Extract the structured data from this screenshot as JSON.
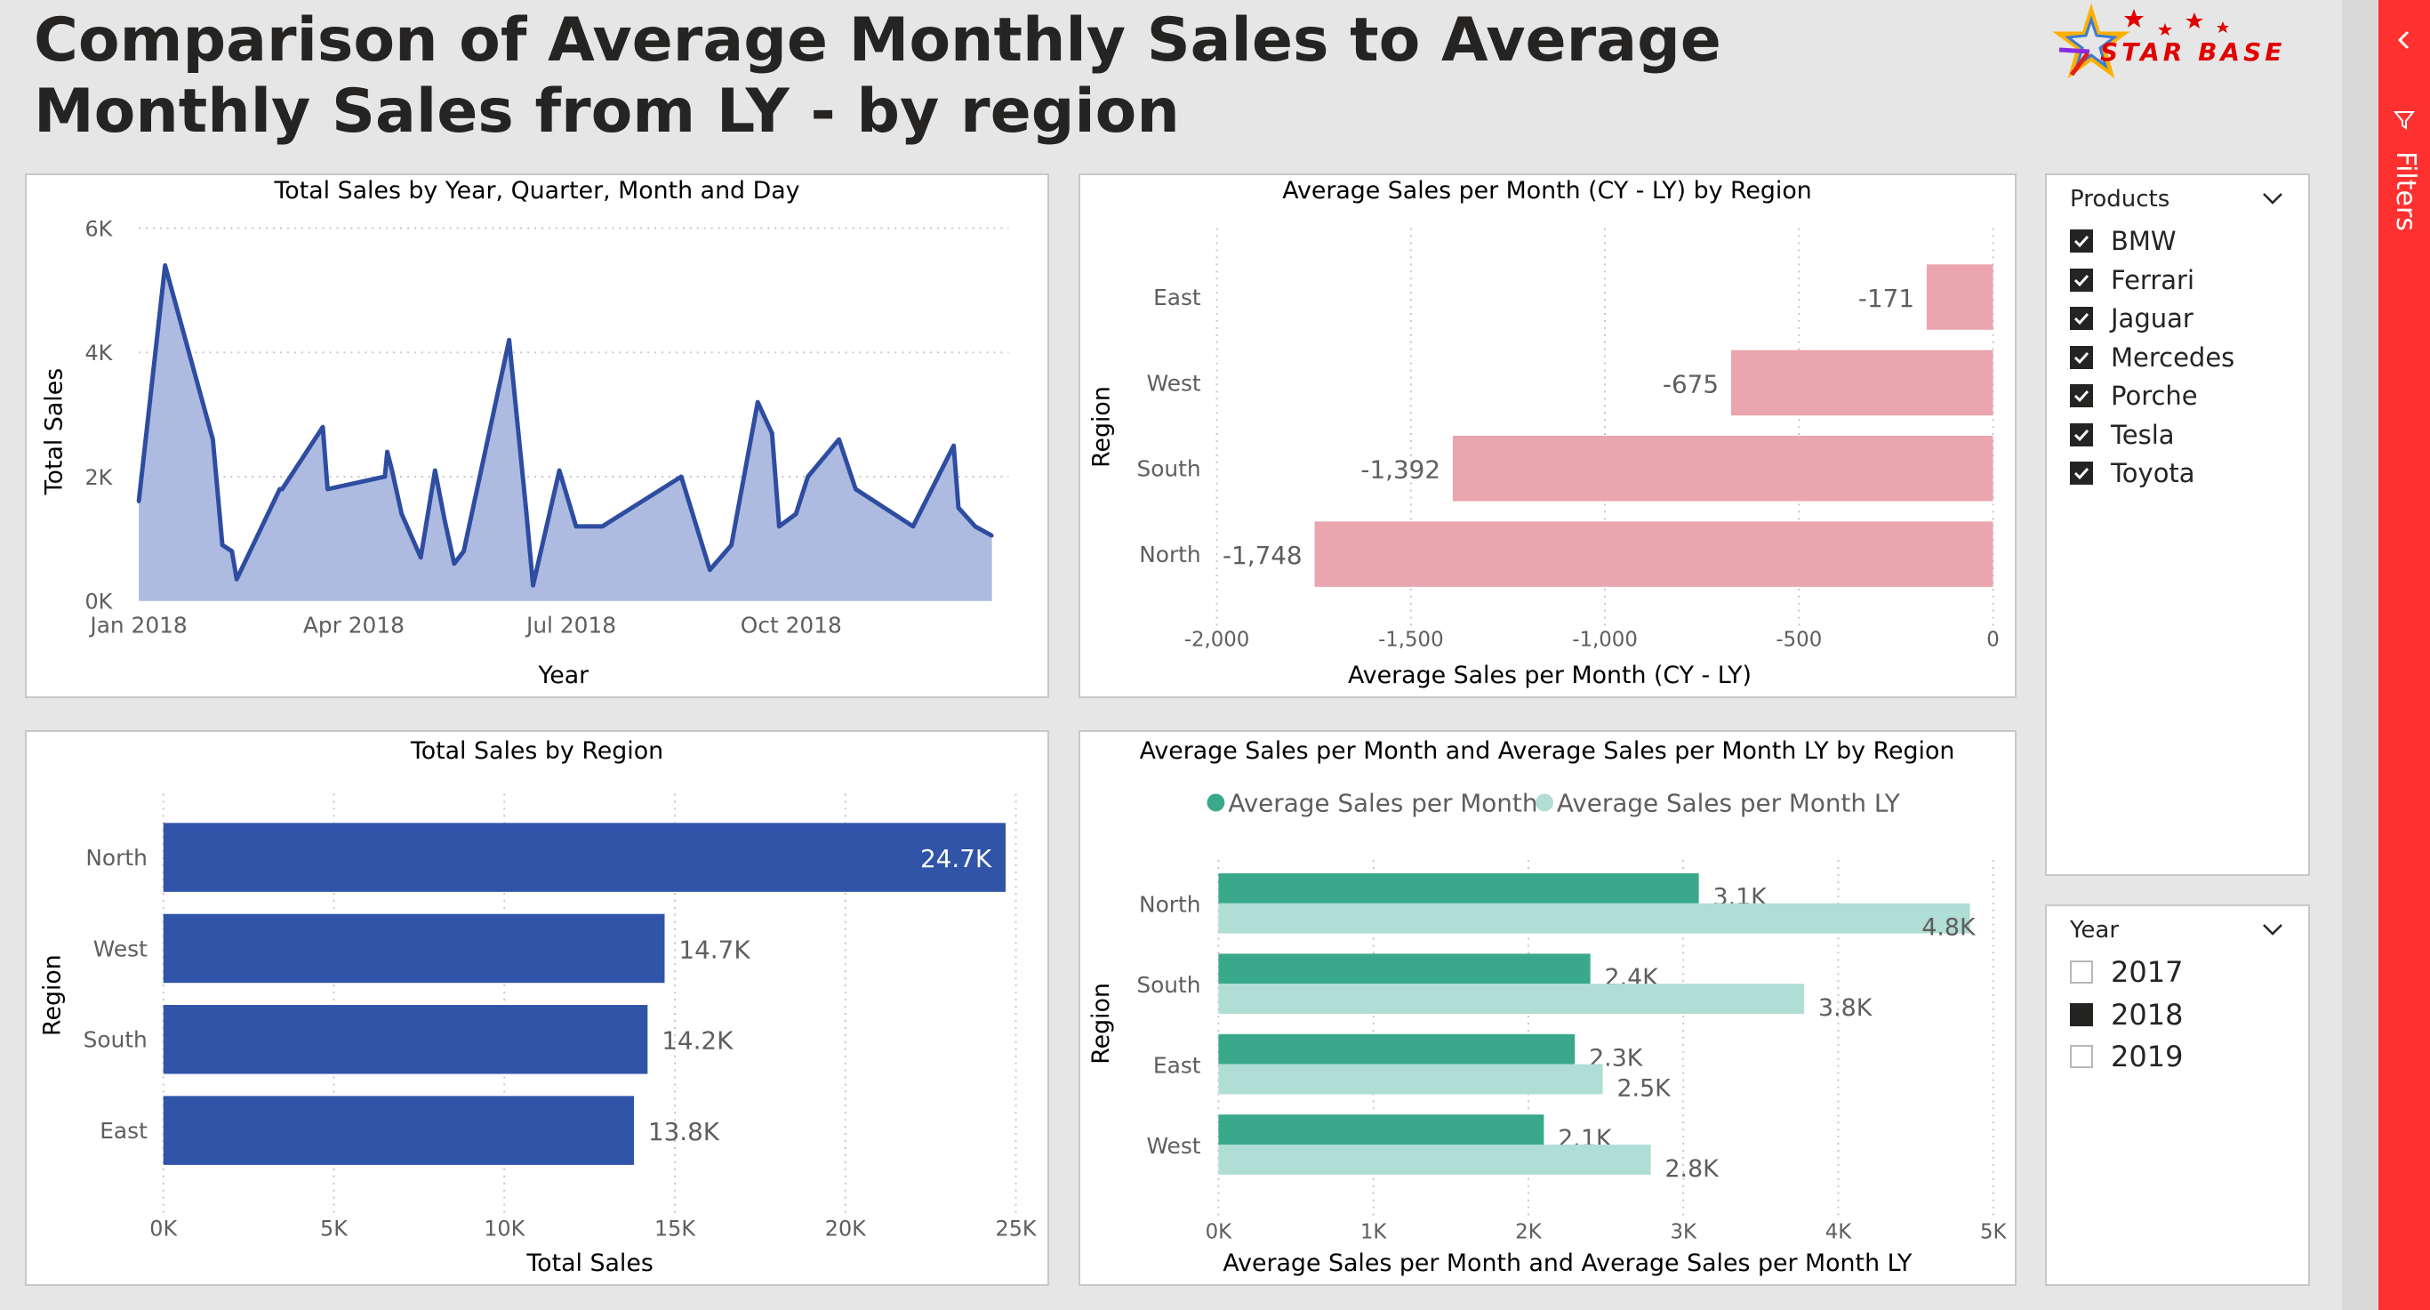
{
  "page": {
    "title_line1": "Comparison of Average Monthly Sales to Average",
    "title_line2": "Monthly Sales from LY - by region",
    "logo_text": "STAR BASE"
  },
  "colors": {
    "line": "#2e4da0",
    "area": "#aebbe0",
    "pink": "#eba5af",
    "blue_bar": "#3054a8",
    "teal": "#3aa88a",
    "teal_light": "#b0ddd4",
    "sidebar": "#ff3030"
  },
  "sidebar": {
    "filters_label": "Filters"
  },
  "slicers": {
    "products": {
      "header": "Products",
      "items": [
        {
          "label": "BMW",
          "checked": true
        },
        {
          "label": "Ferrari",
          "checked": true
        },
        {
          "label": "Jaguar",
          "checked": true
        },
        {
          "label": "Mercedes",
          "checked": true
        },
        {
          "label": "Porche",
          "checked": true
        },
        {
          "label": "Tesla",
          "checked": true
        },
        {
          "label": "Toyota",
          "checked": true
        }
      ]
    },
    "year": {
      "header": "Year",
      "items": [
        {
          "label": "2017",
          "checked": false
        },
        {
          "label": "2018",
          "checked": true
        },
        {
          "label": "2019",
          "checked": false
        }
      ]
    }
  },
  "chart_data": [
    {
      "type": "area",
      "title": "Total Sales by Year, Quarter, Month and Day",
      "xlabel": "Year",
      "ylabel": "Total Sales",
      "ylim": [
        0,
        6000
      ],
      "yticks": [
        0,
        2000,
        4000,
        6000
      ],
      "ytick_labels": [
        "0K",
        "2K",
        "4K",
        "6K"
      ],
      "xlim": [
        "2018-01-01",
        "2018-12-31"
      ],
      "xticks": [
        "2018-01-01",
        "2018-04-01",
        "2018-07-01",
        "2018-10-01"
      ],
      "xtick_labels": [
        "Jan 2018",
        "Apr 2018",
        "Jul 2018",
        "Oct 2018"
      ],
      "x": [
        "2018-01-01",
        "2018-01-12",
        "2018-02-01",
        "2018-02-05",
        "2018-02-09",
        "2018-02-11",
        "2018-03-01",
        "2018-03-02",
        "2018-03-19",
        "2018-03-21",
        "2018-04-14",
        "2018-04-15",
        "2018-04-17",
        "2018-04-21",
        "2018-04-29",
        "2018-05-05",
        "2018-05-09",
        "2018-05-13",
        "2018-05-17",
        "2018-06-05",
        "2018-06-12",
        "2018-06-15",
        "2018-06-26",
        "2018-07-03",
        "2018-07-14",
        "2018-08-16",
        "2018-08-28",
        "2018-09-06",
        "2018-09-17",
        "2018-09-23",
        "2018-09-26",
        "2018-10-03",
        "2018-10-08",
        "2018-10-21",
        "2018-10-28",
        "2018-11-21",
        "2018-12-08",
        "2018-12-10",
        "2018-12-17",
        "2018-12-24"
      ],
      "values": [
        1600,
        5400,
        2600,
        900,
        800,
        350,
        1800,
        1800,
        2800,
        1800,
        2000,
        2400,
        2100,
        1400,
        700,
        2100,
        1300,
        600,
        800,
        4200,
        1500,
        250,
        2100,
        1200,
        1200,
        2000,
        500,
        900,
        3200,
        2700,
        1200,
        1400,
        2000,
        2600,
        1800,
        1200,
        2500,
        1500,
        1200,
        1050
      ]
    },
    {
      "type": "bar",
      "orientation": "horizontal",
      "title": "Average Sales per Month (CY - LY) by Region",
      "xlabel": "Average Sales per Month (CY - LY)",
      "ylabel": "Region",
      "xlim": [
        -2000,
        0
      ],
      "xticks": [
        -2000,
        -1500,
        -1000,
        -500,
        0
      ],
      "xtick_labels": [
        "-2,000",
        "-1,500",
        "-1,000",
        "-500",
        "0"
      ],
      "categories": [
        "East",
        "West",
        "South",
        "North"
      ],
      "values": [
        -171,
        -675,
        -1392,
        -1748
      ],
      "data_labels": [
        "-171",
        "-675",
        "-1,392",
        "-1,748"
      ]
    },
    {
      "type": "bar",
      "orientation": "horizontal",
      "title": "Total Sales by Region",
      "xlabel": "Total Sales",
      "ylabel": "Region",
      "xlim": [
        0,
        25000
      ],
      "xticks": [
        0,
        5000,
        10000,
        15000,
        20000,
        25000
      ],
      "xtick_labels": [
        "0K",
        "5K",
        "10K",
        "15K",
        "20K",
        "25K"
      ],
      "categories": [
        "North",
        "West",
        "South",
        "East"
      ],
      "values": [
        24700,
        14700,
        14200,
        13800
      ],
      "data_labels": [
        "24.7K",
        "14.7K",
        "14.2K",
        "13.8K"
      ]
    },
    {
      "type": "bar",
      "orientation": "horizontal",
      "title": "Average Sales per Month and Average Sales per Month LY by Region",
      "xlabel": "Average Sales per Month and Average Sales per Month LY",
      "ylabel": "Region",
      "xlim": [
        0,
        5000
      ],
      "xticks": [
        0,
        1000,
        2000,
        3000,
        4000,
        5000
      ],
      "xtick_labels": [
        "0K",
        "1K",
        "2K",
        "3K",
        "4K",
        "5K"
      ],
      "legend": "top-center",
      "categories": [
        "North",
        "South",
        "East",
        "West"
      ],
      "series": [
        {
          "name": "Average Sales per Month",
          "values": [
            3100,
            2400,
            2300,
            2100
          ],
          "data_labels": [
            "3.1K",
            "2.4K",
            "2.3K",
            "2.1K"
          ]
        },
        {
          "name": "Average Sales per Month LY",
          "values": [
            4850,
            3780,
            2480,
            2790
          ],
          "data_labels": [
            "4.8K",
            "3.8K",
            "2.5K",
            "2.8K"
          ]
        }
      ]
    }
  ]
}
